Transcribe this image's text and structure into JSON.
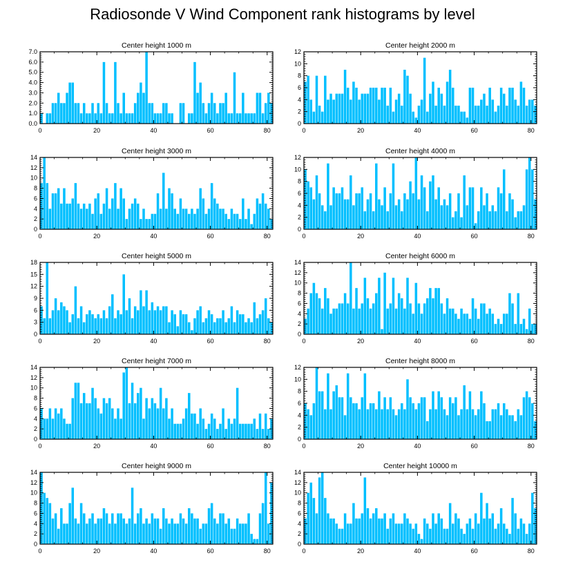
{
  "title": "Radiosonde V Wind Component rank histograms by level",
  "bar_color": "#00bfff",
  "chart_data": [
    {
      "type": "bar",
      "title": "Center height 1000 m",
      "ylim": [
        0,
        7
      ],
      "yticks": [
        0,
        1,
        2,
        3,
        4,
        5,
        6,
        7
      ],
      "ytick_labels": [
        "0.0",
        "1.0",
        "2.0",
        "3.0",
        "4.0",
        "5.0",
        "6.0",
        "7.0"
      ],
      "xlim": [
        0,
        82
      ],
      "xticks": [
        0,
        20,
        40,
        60,
        80
      ],
      "xtick_labels": [
        "0",
        "20",
        "40",
        "60",
        "80"
      ],
      "values": [
        1,
        0,
        1,
        1,
        2,
        2,
        3,
        2,
        2,
        3,
        4,
        4,
        2,
        2,
        1,
        2,
        1,
        1,
        2,
        1,
        2,
        1,
        6,
        2,
        1,
        1,
        6,
        2,
        1,
        3,
        1,
        1,
        1,
        2,
        3,
        4,
        3,
        7,
        2,
        2,
        1,
        1,
        1,
        2,
        2,
        1,
        1,
        0,
        0,
        2,
        2,
        0,
        1,
        1,
        6,
        3,
        4,
        2,
        1,
        2,
        3,
        2,
        1,
        2,
        2,
        3,
        1,
        1,
        5,
        1,
        1,
        3,
        1,
        1,
        1,
        1,
        3,
        3,
        1,
        2,
        3,
        2
      ]
    },
    {
      "type": "bar",
      "title": "Center height 2000 m",
      "ylim": [
        0,
        12
      ],
      "yticks": [
        0,
        2,
        4,
        6,
        8,
        10,
        12
      ],
      "ytick_labels": [
        "0",
        "2",
        "4",
        "6",
        "8",
        "10",
        "12"
      ],
      "xlim": [
        0,
        82
      ],
      "xticks": [
        0,
        20,
        40,
        60,
        80
      ],
      "xtick_labels": [
        "0",
        "20",
        "40",
        "60",
        "80"
      ],
      "values": [
        7,
        8,
        4,
        2,
        8,
        3,
        2,
        8,
        4,
        5,
        4,
        5,
        5,
        5,
        9,
        6,
        4,
        7,
        6,
        4,
        5,
        5,
        5,
        6,
        6,
        6,
        4,
        6,
        6,
        3,
        6,
        2,
        4,
        5,
        3,
        9,
        8,
        5,
        2,
        1,
        3,
        4,
        11,
        2,
        5,
        7,
        3,
        6,
        5,
        3,
        7,
        9,
        6,
        3,
        3,
        2,
        2,
        1,
        6,
        6,
        3,
        3,
        4,
        5,
        3,
        6,
        4,
        2,
        3,
        6,
        5,
        3,
        6,
        6,
        4,
        3,
        7,
        6,
        3,
        4,
        4,
        3
      ]
    },
    {
      "type": "bar",
      "title": "Center height 3000 m",
      "ylim": [
        0,
        14
      ],
      "yticks": [
        0,
        2,
        4,
        6,
        8,
        10,
        12,
        14
      ],
      "ytick_labels": [
        "0",
        "2",
        "4",
        "6",
        "8",
        "10",
        "12",
        "14"
      ],
      "xlim": [
        0,
        82
      ],
      "xticks": [
        0,
        20,
        40,
        60,
        80
      ],
      "xtick_labels": [
        "0",
        "20",
        "40",
        "60",
        "80"
      ],
      "values": [
        9,
        14,
        9,
        4,
        7,
        7,
        8,
        5,
        8,
        5,
        5,
        6,
        9,
        5,
        4,
        5,
        4,
        5,
        3,
        6,
        7,
        3,
        5,
        8,
        4,
        6,
        9,
        4,
        8,
        6,
        2,
        4,
        5,
        6,
        5,
        2,
        4,
        2,
        2,
        3,
        3,
        7,
        4,
        11,
        4,
        8,
        7,
        4,
        3,
        6,
        4,
        4,
        3,
        4,
        3,
        4,
        8,
        6,
        3,
        4,
        9,
        6,
        5,
        4,
        4,
        3,
        2,
        4,
        3,
        3,
        2,
        6,
        2,
        4,
        1,
        3,
        6,
        5,
        7,
        5,
        4,
        2
      ]
    },
    {
      "type": "bar",
      "title": "Center height 4000 m",
      "ylim": [
        0,
        12
      ],
      "yticks": [
        0,
        2,
        4,
        6,
        8,
        10,
        12
      ],
      "ytick_labels": [
        "0",
        "2",
        "4",
        "6",
        "8",
        "10",
        "12"
      ],
      "xlim": [
        0,
        82
      ],
      "xticks": [
        0,
        20,
        40,
        60,
        80
      ],
      "xtick_labels": [
        "0",
        "20",
        "40",
        "60",
        "80"
      ],
      "values": [
        10,
        8,
        7,
        5,
        9,
        6,
        4,
        3,
        11,
        4,
        7,
        6,
        6,
        7,
        5,
        5,
        9,
        4,
        6,
        6,
        7,
        3,
        5,
        6,
        3,
        11,
        5,
        4,
        7,
        3,
        6,
        11,
        4,
        5,
        3,
        6,
        5,
        8,
        6,
        12,
        5,
        9,
        7,
        3,
        8,
        9,
        5,
        7,
        4,
        5,
        4,
        6,
        2,
        3,
        6,
        2,
        9,
        4,
        7,
        7,
        1,
        3,
        7,
        4,
        6,
        3,
        4,
        3,
        7,
        6,
        10,
        3,
        6,
        5,
        2,
        3,
        3,
        4,
        10,
        12,
        10,
        5
      ]
    },
    {
      "type": "bar",
      "title": "Center height 5000 m",
      "ylim": [
        0,
        18
      ],
      "yticks": [
        0,
        3,
        6,
        9,
        12,
        15,
        18
      ],
      "ytick_labels": [
        "0",
        "3",
        "6",
        "9",
        "12",
        "15",
        "18"
      ],
      "xlim": [
        0,
        82
      ],
      "xticks": [
        0,
        20,
        40,
        60,
        80
      ],
      "xtick_labels": [
        "0",
        "20",
        "40",
        "60",
        "80"
      ],
      "values": [
        7,
        4,
        18,
        4,
        6,
        9,
        6,
        8,
        7,
        6,
        3,
        5,
        12,
        4,
        7,
        3,
        5,
        6,
        5,
        4,
        5,
        4,
        6,
        4,
        7,
        10,
        4,
        6,
        5,
        15,
        6,
        9,
        4,
        7,
        6,
        11,
        7,
        11,
        6,
        8,
        6,
        7,
        6,
        7,
        7,
        3,
        6,
        5,
        2,
        6,
        5,
        5,
        3,
        1,
        4,
        6,
        7,
        3,
        4,
        6,
        5,
        3,
        4,
        4,
        6,
        3,
        4,
        7,
        3,
        6,
        5,
        5,
        3,
        4,
        3,
        8,
        4,
        5,
        6,
        9,
        4,
        3
      ]
    },
    {
      "type": "bar",
      "title": "Center height 6000 m",
      "ylim": [
        0,
        14
      ],
      "yticks": [
        0,
        2,
        4,
        6,
        8,
        10,
        12,
        14
      ],
      "ytick_labels": [
        "0",
        "2",
        "4",
        "6",
        "8",
        "10",
        "12",
        "14"
      ],
      "xlim": [
        0,
        82
      ],
      "xticks": [
        0,
        20,
        40,
        60,
        80
      ],
      "xtick_labels": [
        "0",
        "20",
        "40",
        "60",
        "80"
      ],
      "values": [
        3,
        5,
        8,
        10,
        8,
        7,
        5,
        9,
        7,
        4,
        5,
        5,
        6,
        6,
        8,
        6,
        14,
        5,
        9,
        5,
        6,
        11,
        7,
        5,
        6,
        8,
        11,
        1,
        12,
        5,
        6,
        11,
        5,
        8,
        7,
        5,
        11,
        6,
        4,
        10,
        6,
        4,
        6,
        7,
        9,
        7,
        9,
        9,
        6,
        4,
        7,
        5,
        5,
        4,
        3,
        5,
        4,
        4,
        3,
        7,
        5,
        3,
        6,
        6,
        4,
        5,
        4,
        2,
        3,
        2,
        4,
        4,
        8,
        6,
        2,
        8,
        2,
        3,
        1,
        5,
        2,
        2
      ]
    },
    {
      "type": "bar",
      "title": "Center height 7000 m",
      "ylim": [
        0,
        14
      ],
      "yticks": [
        0,
        2,
        4,
        6,
        8,
        10,
        12,
        14
      ],
      "ytick_labels": [
        "0",
        "2",
        "4",
        "6",
        "8",
        "10",
        "12",
        "14"
      ],
      "xlim": [
        0,
        82
      ],
      "xticks": [
        0,
        20,
        40,
        60,
        80
      ],
      "xtick_labels": [
        "0",
        "20",
        "40",
        "60",
        "80"
      ],
      "values": [
        6,
        4,
        4,
        6,
        4,
        6,
        5,
        6,
        4,
        3,
        3,
        8,
        11,
        11,
        7,
        9,
        7,
        7,
        10,
        8,
        6,
        5,
        8,
        7,
        8,
        6,
        4,
        6,
        4,
        13,
        14,
        7,
        11,
        7,
        9,
        10,
        4,
        8,
        6,
        8,
        7,
        6,
        10,
        6,
        8,
        4,
        6,
        3,
        3,
        3,
        4,
        6,
        9,
        5,
        5,
        3,
        6,
        4,
        2,
        3,
        5,
        4,
        2,
        3,
        6,
        2,
        4,
        3,
        4,
        10,
        3,
        3,
        3,
        3,
        3,
        4,
        2,
        5,
        2,
        5,
        2,
        4
      ]
    },
    {
      "type": "bar",
      "title": "Center height 8000 m",
      "ylim": [
        0,
        12
      ],
      "yticks": [
        0,
        2,
        4,
        6,
        8,
        10,
        12
      ],
      "ytick_labels": [
        "0",
        "2",
        "4",
        "6",
        "8",
        "10",
        "12"
      ],
      "xlim": [
        0,
        82
      ],
      "xticks": [
        0,
        20,
        40,
        60,
        80
      ],
      "xtick_labels": [
        "0",
        "20",
        "40",
        "60",
        "80"
      ],
      "values": [
        6,
        5,
        4,
        6,
        12,
        8,
        8,
        5,
        11,
        5,
        8,
        9,
        7,
        7,
        4,
        11,
        7,
        6,
        6,
        5,
        7,
        11,
        5,
        6,
        6,
        5,
        8,
        5,
        7,
        5,
        7,
        5,
        4,
        5,
        6,
        5,
        10,
        7,
        6,
        5,
        6,
        7,
        7,
        3,
        5,
        8,
        5,
        8,
        7,
        5,
        4,
        7,
        6,
        7,
        4,
        5,
        9,
        5,
        8,
        5,
        4,
        5,
        8,
        6,
        3,
        3,
        5,
        5,
        6,
        4,
        6,
        5,
        4,
        4,
        3,
        5,
        4,
        7,
        8,
        7,
        6,
        3
      ]
    },
    {
      "type": "bar",
      "title": "Center height 9000 m",
      "ylim": [
        0,
        14
      ],
      "yticks": [
        0,
        2,
        4,
        6,
        8,
        10,
        12,
        14
      ],
      "ytick_labels": [
        "0",
        "2",
        "4",
        "6",
        "8",
        "10",
        "12",
        "14"
      ],
      "xlim": [
        0,
        82
      ],
      "xticks": [
        0,
        20,
        40,
        60,
        80
      ],
      "xtick_labels": [
        "0",
        "20",
        "40",
        "60",
        "80"
      ],
      "values": [
        14,
        10,
        9,
        8,
        5,
        6,
        3,
        7,
        4,
        4,
        8,
        11,
        5,
        4,
        8,
        6,
        4,
        5,
        6,
        4,
        5,
        5,
        7,
        6,
        4,
        6,
        4,
        6,
        6,
        5,
        4,
        5,
        11,
        4,
        6,
        7,
        4,
        5,
        4,
        6,
        5,
        5,
        3,
        7,
        5,
        4,
        5,
        4,
        4,
        6,
        5,
        4,
        7,
        6,
        5,
        5,
        3,
        4,
        4,
        7,
        8,
        5,
        4,
        6,
        6,
        4,
        5,
        3,
        3,
        5,
        4,
        4,
        4,
        6,
        2,
        1,
        1,
        6,
        8,
        14,
        4,
        12
      ]
    },
    {
      "type": "bar",
      "title": "Center height 10000 m",
      "ylim": [
        0,
        14
      ],
      "yticks": [
        0,
        2,
        4,
        6,
        8,
        10,
        12,
        14
      ],
      "ytick_labels": [
        "0",
        "2",
        "4",
        "6",
        "8",
        "10",
        "12",
        "14"
      ],
      "xlim": [
        0,
        82
      ],
      "xticks": [
        0,
        20,
        40,
        60,
        80
      ],
      "xtick_labels": [
        "0",
        "20",
        "40",
        "60",
        "80"
      ],
      "values": [
        5,
        10,
        12,
        9,
        6,
        13,
        14,
        9,
        6,
        5,
        5,
        4,
        3,
        3,
        6,
        4,
        4,
        8,
        5,
        5,
        6,
        13,
        7,
        5,
        6,
        7,
        5,
        5,
        6,
        3,
        5,
        6,
        4,
        4,
        4,
        6,
        5,
        4,
        3,
        4,
        2,
        1,
        5,
        4,
        3,
        6,
        4,
        6,
        5,
        3,
        3,
        8,
        4,
        6,
        5,
        3,
        2,
        4,
        5,
        3,
        6,
        4,
        10,
        5,
        8,
        5,
        6,
        3,
        4,
        7,
        4,
        3,
        2,
        9,
        6,
        3,
        5,
        4,
        2,
        4,
        10,
        7
      ]
    }
  ]
}
